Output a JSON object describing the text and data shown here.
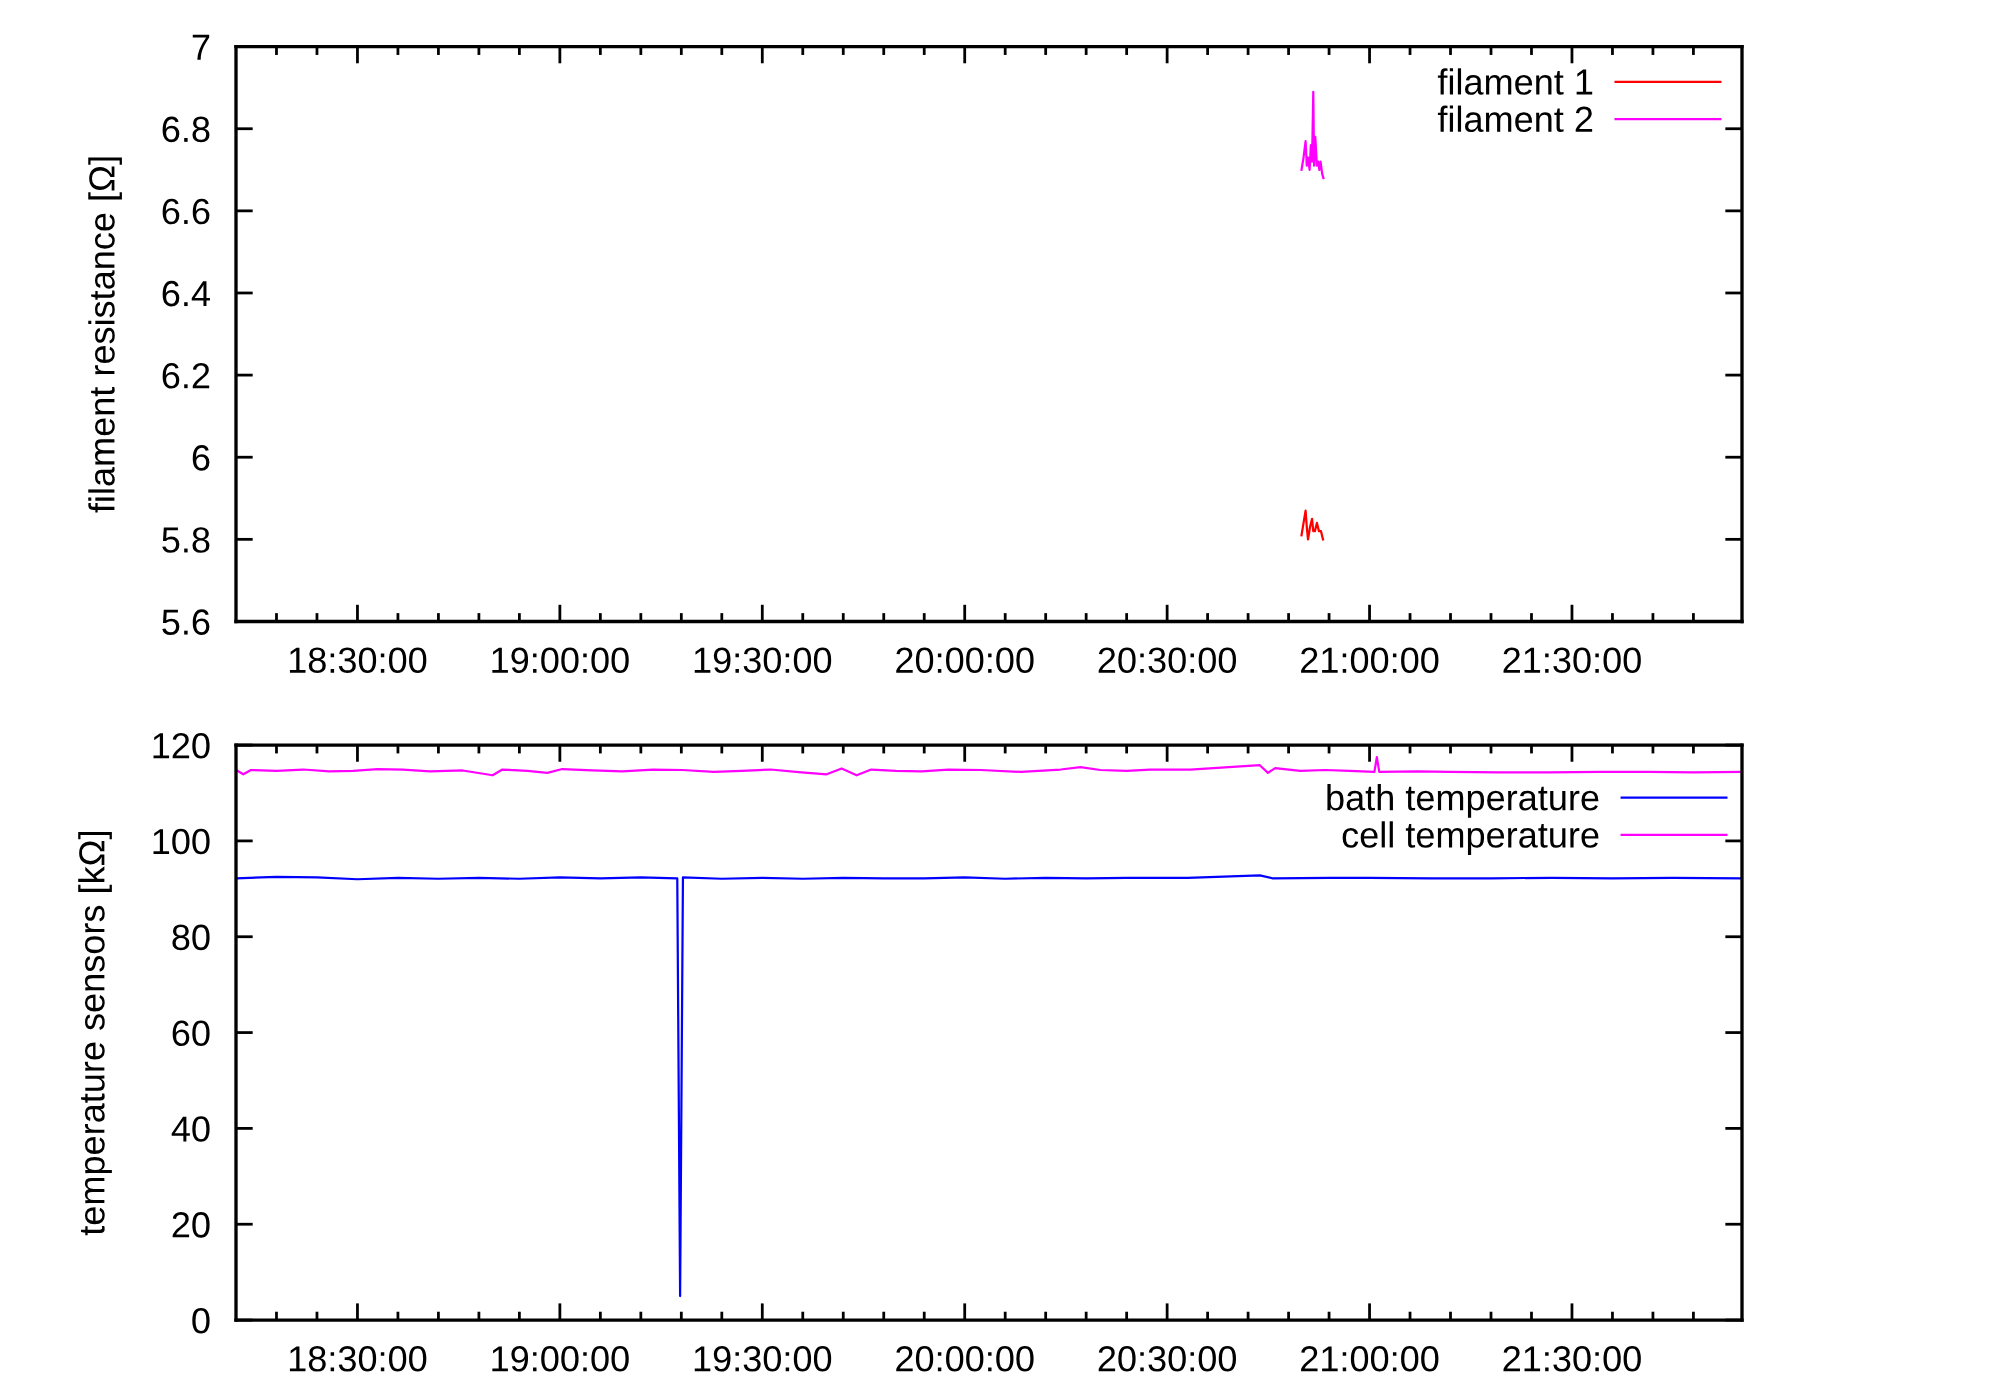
{
  "chart_data": [
    {
      "type": "line",
      "ylabel": "filament resistance [Ω]",
      "xlim": [
        18.2,
        21.92
      ],
      "xticks": [
        {
          "value": 18.3,
          "label": null
        },
        {
          "value": 18.4,
          "label": null
        },
        {
          "value": 18.5,
          "label": "18:30:00"
        },
        {
          "value": 18.6,
          "label": null
        },
        {
          "value": 18.7,
          "label": null
        },
        {
          "value": 18.8,
          "label": null
        },
        {
          "value": 18.9,
          "label": null
        },
        {
          "value": 19,
          "label": "19:00:00"
        },
        {
          "value": 19.1,
          "label": null
        },
        {
          "value": 19.2,
          "label": null
        },
        {
          "value": 19.3,
          "label": null
        },
        {
          "value": 19.4,
          "label": null
        },
        {
          "value": 19.5,
          "label": "19:30:00"
        },
        {
          "value": 19.6,
          "label": null
        },
        {
          "value": 19.7,
          "label": null
        },
        {
          "value": 19.8,
          "label": null
        },
        {
          "value": 19.9,
          "label": null
        },
        {
          "value": 20,
          "label": "20:00:00"
        },
        {
          "value": 20.1,
          "label": null
        },
        {
          "value": 20.2,
          "label": null
        },
        {
          "value": 20.3,
          "label": null
        },
        {
          "value": 20.4,
          "label": null
        },
        {
          "value": 20.5,
          "label": "20:30:00"
        },
        {
          "value": 20.6,
          "label": null
        },
        {
          "value": 20.7,
          "label": null
        },
        {
          "value": 20.8,
          "label": null
        },
        {
          "value": 20.9,
          "label": null
        },
        {
          "value": 21,
          "label": "21:00:00"
        },
        {
          "value": 21.1,
          "label": null
        },
        {
          "value": 21.2,
          "label": null
        },
        {
          "value": 21.3,
          "label": null
        },
        {
          "value": 21.4,
          "label": null
        },
        {
          "value": 21.5,
          "label": "21:30:00"
        },
        {
          "value": 21.6,
          "label": null
        },
        {
          "value": 21.7,
          "label": null
        },
        {
          "value": 21.8,
          "label": null
        }
      ],
      "ylim": [
        5.6,
        7
      ],
      "yticks": [
        5.6,
        5.8,
        6,
        6.2,
        6.4,
        6.6,
        6.8,
        7
      ],
      "legend": "top right",
      "grid": false,
      "series": [
        {
          "name": "filament 1",
          "color": "#ff0000",
          "x": [
            20.832,
            20.837,
            20.842,
            20.845,
            20.848,
            20.853,
            20.858,
            20.861,
            20.865,
            20.87,
            20.875,
            20.88,
            20.885
          ],
          "values": [
            5.81,
            5.84,
            5.87,
            5.83,
            5.8,
            5.83,
            5.85,
            5.82,
            5.82,
            5.84,
            5.82,
            5.82,
            5.8
          ]
        },
        {
          "name": "filament 2",
          "color": "#ff00ff",
          "x": [
            20.832,
            20.837,
            20.842,
            20.845,
            20.848,
            20.852,
            20.855,
            20.858,
            20.861,
            20.863,
            20.866,
            20.87,
            20.873,
            20.876,
            20.879,
            20.883,
            20.886
          ],
          "values": [
            6.7,
            6.73,
            6.77,
            6.71,
            6.73,
            6.7,
            6.76,
            6.72,
            6.89,
            6.71,
            6.78,
            6.71,
            6.72,
            6.7,
            6.72,
            6.69,
            6.68
          ]
        }
      ]
    },
    {
      "type": "line",
      "ylabel": "temperature sensors [kΩ]",
      "xlim": [
        18.2,
        21.92
      ],
      "xticks": [
        {
          "value": 18.3,
          "label": null
        },
        {
          "value": 18.4,
          "label": null
        },
        {
          "value": 18.5,
          "label": "18:30:00"
        },
        {
          "value": 18.6,
          "label": null
        },
        {
          "value": 18.7,
          "label": null
        },
        {
          "value": 18.8,
          "label": null
        },
        {
          "value": 18.9,
          "label": null
        },
        {
          "value": 19,
          "label": "19:00:00"
        },
        {
          "value": 19.1,
          "label": null
        },
        {
          "value": 19.2,
          "label": null
        },
        {
          "value": 19.3,
          "label": null
        },
        {
          "value": 19.4,
          "label": null
        },
        {
          "value": 19.5,
          "label": "19:30:00"
        },
        {
          "value": 19.6,
          "label": null
        },
        {
          "value": 19.7,
          "label": null
        },
        {
          "value": 19.8,
          "label": null
        },
        {
          "value": 19.9,
          "label": null
        },
        {
          "value": 20,
          "label": "20:00:00"
        },
        {
          "value": 20.1,
          "label": null
        },
        {
          "value": 20.2,
          "label": null
        },
        {
          "value": 20.3,
          "label": null
        },
        {
          "value": 20.4,
          "label": null
        },
        {
          "value": 20.5,
          "label": "20:30:00"
        },
        {
          "value": 20.6,
          "label": null
        },
        {
          "value": 20.7,
          "label": null
        },
        {
          "value": 20.8,
          "label": null
        },
        {
          "value": 20.9,
          "label": null
        },
        {
          "value": 21,
          "label": "21:00:00"
        },
        {
          "value": 21.1,
          "label": null
        },
        {
          "value": 21.2,
          "label": null
        },
        {
          "value": 21.3,
          "label": null
        },
        {
          "value": 21.4,
          "label": null
        },
        {
          "value": 21.5,
          "label": "21:30:00"
        },
        {
          "value": 21.6,
          "label": null
        },
        {
          "value": 21.7,
          "label": null
        },
        {
          "value": 21.8,
          "label": null
        }
      ],
      "ylim": [
        0,
        120
      ],
      "yticks": [
        0,
        20,
        40,
        60,
        80,
        100,
        120
      ],
      "legend": "top right",
      "grid": false,
      "series": [
        {
          "name": "bath temperature",
          "color": "#0000ff",
          "x": [
            18.2,
            18.3,
            18.4,
            18.5,
            18.6,
            18.7,
            18.8,
            18.9,
            19.0,
            19.1,
            19.2,
            19.29,
            19.297,
            19.304,
            19.4,
            19.5,
            19.6,
            19.7,
            19.8,
            19.9,
            20.0,
            20.1,
            20.2,
            20.3,
            20.4,
            20.55,
            20.729,
            20.76,
            20.9,
            21.0,
            21.15,
            21.3,
            21.45,
            21.6,
            21.75,
            21.92
          ],
          "values": [
            92.2,
            92.5,
            92.4,
            92.0,
            92.3,
            92.1,
            92.3,
            92.1,
            92.4,
            92.2,
            92.4,
            92.2,
            5,
            92.4,
            92.1,
            92.3,
            92.1,
            92.3,
            92.2,
            92.2,
            92.4,
            92.1,
            92.3,
            92.2,
            92.3,
            92.3,
            92.8,
            92.2,
            92.3,
            92.3,
            92.2,
            92.2,
            92.3,
            92.2,
            92.3,
            92.2
          ]
        },
        {
          "name": "cell temperature",
          "color": "#ff00ff",
          "x": [
            18.2,
            18.218,
            18.237,
            18.3,
            18.366,
            18.43,
            18.489,
            18.55,
            18.612,
            18.68,
            18.76,
            18.834,
            18.858,
            18.92,
            18.969,
            19.006,
            19.08,
            19.154,
            19.23,
            19.302,
            19.38,
            19.449,
            19.52,
            19.597,
            19.659,
            19.696,
            19.733,
            19.769,
            19.83,
            19.893,
            19.96,
            20.04,
            20.139,
            20.237,
            20.286,
            20.335,
            20.4,
            20.458,
            20.557,
            20.729,
            20.749,
            20.767,
            20.829,
            20.89,
            20.951,
            21.012,
            21.018,
            21.024,
            21.12,
            21.198,
            21.32,
            21.444,
            21.57,
            21.69,
            21.8,
            21.92
          ],
          "values": [
            114.8,
            113.9,
            114.8,
            114.6,
            114.9,
            114.5,
            114.6,
            115.0,
            114.9,
            114.5,
            114.7,
            113.7,
            114.9,
            114.6,
            114.2,
            115.0,
            114.7,
            114.5,
            114.9,
            114.8,
            114.4,
            114.6,
            114.9,
            114.3,
            113.9,
            115.1,
            113.7,
            114.9,
            114.6,
            114.5,
            114.9,
            114.8,
            114.4,
            114.9,
            115.4,
            114.8,
            114.6,
            114.9,
            114.9,
            115.8,
            114.2,
            115.2,
            114.6,
            114.8,
            114.6,
            114.4,
            117.5,
            114.4,
            114.5,
            114.4,
            114.3,
            114.3,
            114.4,
            114.4,
            114.3,
            114.4
          ]
        }
      ]
    }
  ]
}
